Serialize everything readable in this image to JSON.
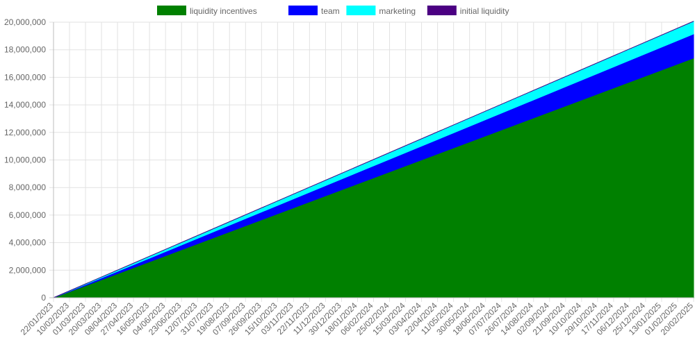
{
  "chart_data": {
    "type": "area",
    "stacked": true,
    "legend_position": "top",
    "grid": true,
    "x_start": "22/01/2023",
    "x_end": "20/02/2025",
    "x_tick_labels": [
      "22/01/2023",
      "10/02/2023",
      "01/03/2023",
      "20/03/2023",
      "08/04/2023",
      "27/04/2023",
      "16/05/2023",
      "04/06/2023",
      "23/06/2023",
      "12/07/2023",
      "31/07/2023",
      "19/08/2023",
      "07/09/2023",
      "26/09/2023",
      "15/10/2023",
      "03/11/2023",
      "22/11/2023",
      "11/12/2023",
      "30/12/2023",
      "18/01/2024",
      "06/02/2024",
      "25/02/2024",
      "15/03/2024",
      "03/04/2024",
      "22/04/2024",
      "11/05/2024",
      "30/05/2024",
      "18/06/2024",
      "07/07/2024",
      "26/07/2024",
      "14/08/2024",
      "02/09/2024",
      "21/09/2024",
      "10/10/2024",
      "29/10/2024",
      "17/11/2024",
      "06/12/2024",
      "25/12/2024",
      "13/01/2025",
      "01/02/2025",
      "20/02/2025"
    ],
    "y_tick_labels": [
      "0",
      "2,000,000",
      "4,000,000",
      "6,000,000",
      "8,000,000",
      "10,000,000",
      "12,000,000",
      "14,000,000",
      "16,000,000",
      "18,000,000",
      "20,000,000"
    ],
    "ylim": [
      0,
      20000000
    ],
    "series": [
      {
        "name": "liquidity incentives",
        "color": "#008000",
        "x": [
          "22/01/2023",
          "20/02/2025"
        ],
        "values": [
          0,
          17400000
        ]
      },
      {
        "name": "team",
        "color": "#0000ff",
        "x": [
          "22/01/2023",
          "20/02/2025"
        ],
        "values": [
          0,
          1750000
        ]
      },
      {
        "name": "marketing",
        "color": "#00ffff",
        "x": [
          "22/01/2023",
          "20/02/2025"
        ],
        "values": [
          0,
          920000
        ]
      },
      {
        "name": "initial liquidity",
        "color": "#4b0082",
        "x": [
          "22/01/2023",
          "20/02/2025"
        ],
        "values": [
          0,
          0
        ]
      }
    ]
  }
}
